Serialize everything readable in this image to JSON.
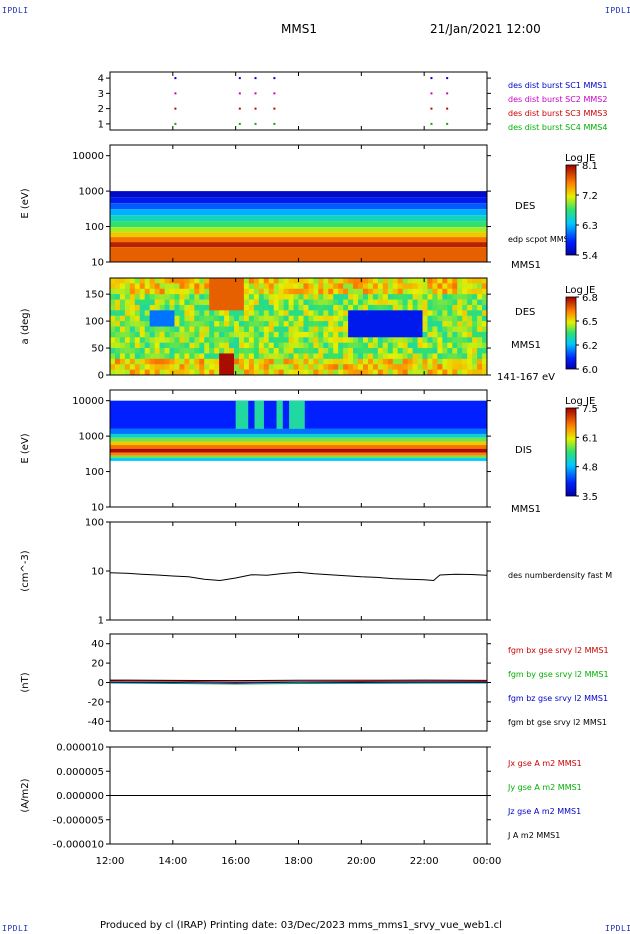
{
  "header": {
    "corner_tl": "IPDLI",
    "corner_tr": "IPDLI",
    "corner_bl": "IPDLI",
    "corner_br": "IPDLI",
    "spacecraft": "MMS1",
    "date_time": "21/Jan/2021 12:00"
  },
  "footer": {
    "text": "Produced by cl (IRAP)   Printing date: 03/Dec/2023   mms_mms1_srvy_vue_web1.cl"
  },
  "x_axis": {
    "ticks": [
      "12:00",
      "14:00",
      "16:00",
      "18:00",
      "20:00",
      "22:00",
      "00:00"
    ],
    "range_hours": [
      12,
      24
    ]
  },
  "chart_data": [
    {
      "type": "scatter",
      "id": "burst",
      "ylim": [
        0.6,
        4.4
      ],
      "yticks": [
        "1",
        "2",
        "3",
        "4"
      ],
      "legend": [
        {
          "label": "des dist burst SC1 MMS1",
          "color": "#0000cc"
        },
        {
          "label": "des dist burst SC2 MMS2",
          "color": "#cc00cc"
        },
        {
          "label": "des dist burst SC3 MMS3",
          "color": "#cc0000"
        },
        {
          "label": "des dist burst SC4 MMS4",
          "color": "#00b000"
        }
      ],
      "burst_times_hours": [
        14.05,
        16.1,
        16.6,
        17.2,
        22.2,
        22.7
      ]
    },
    {
      "type": "heatmap",
      "id": "des_energy",
      "ylabel": "E (eV)",
      "yscale": "log",
      "ylim": [
        10,
        20000
      ],
      "yticks": [
        "10",
        "100",
        "1000",
        "10000"
      ],
      "side_labels": [
        "DES",
        "edp scpot MMS1",
        "MMS1"
      ],
      "colorbar": {
        "title": "Log JE",
        "ticks": [
          "8.1",
          "7.2",
          "6.3",
          "5.4"
        ],
        "range": [
          5.4,
          8.1
        ]
      }
    },
    {
      "type": "heatmap",
      "id": "des_pitch",
      "ylabel": "a (deg)",
      "ylim": [
        0,
        180
      ],
      "yticks": [
        "0",
        "50",
        "100",
        "150"
      ],
      "side_labels": [
        "DES",
        "MMS1",
        "141-167 eV"
      ],
      "colorbar": {
        "title": "Log JE",
        "ticks": [
          "6.8",
          "6.5",
          "6.2",
          "6.0"
        ],
        "range": [
          6.0,
          6.8
        ]
      }
    },
    {
      "type": "heatmap",
      "id": "dis_energy",
      "ylabel": "E (eV)",
      "yscale": "log",
      "ylim": [
        10,
        20000
      ],
      "yticks": [
        "10",
        "100",
        "1000",
        "10000"
      ],
      "side_labels": [
        "DIS",
        "MMS1"
      ],
      "colorbar": {
        "title": "Log JE",
        "ticks": [
          "7.5",
          "6.1",
          "4.8",
          "3.5"
        ],
        "range": [
          3.5,
          7.5
        ]
      }
    },
    {
      "type": "line",
      "id": "density",
      "ylabel": "(cm^-3)",
      "yscale": "log",
      "ylim": [
        1,
        100
      ],
      "yticks": [
        "1",
        "10",
        "100"
      ],
      "series": [
        {
          "name": "des numberdensity fast M",
          "color": "#000000",
          "x": [
            12.0,
            12.5,
            13.0,
            13.5,
            14.0,
            14.5,
            15.0,
            15.5,
            16.0,
            16.5,
            17.0,
            17.5,
            18.0,
            18.5,
            19.0,
            19.5,
            20.0,
            20.5,
            21.0,
            21.5,
            22.0,
            22.3,
            22.5,
            23.0,
            23.5,
            24.0
          ],
          "y": [
            9.2,
            9.0,
            8.6,
            8.3,
            7.9,
            7.6,
            6.8,
            6.4,
            7.2,
            8.4,
            8.2,
            8.9,
            9.4,
            8.8,
            8.4,
            8.0,
            7.6,
            7.4,
            7.0,
            6.8,
            6.6,
            6.4,
            8.3,
            8.6,
            8.5,
            8.2
          ]
        }
      ]
    },
    {
      "type": "line",
      "id": "magnetic",
      "ylabel": "(nT)",
      "ylim": [
        -50,
        50
      ],
      "yticks": [
        "-40",
        "-20",
        "0",
        "20",
        "40"
      ],
      "series": [
        {
          "name": "fgm bx gse srvy l2 MMS1",
          "color": "#cc0000",
          "x": [
            12,
            14,
            16,
            18,
            20,
            22,
            24
          ],
          "y": [
            1.5,
            1.2,
            0.5,
            0.8,
            1.0,
            1.2,
            1.0
          ]
        },
        {
          "name": "fgm by gse srvy l2 MMS1",
          "color": "#00b000",
          "x": [
            12,
            14,
            16,
            18,
            20,
            22,
            24
          ],
          "y": [
            -0.5,
            -1.0,
            -1.5,
            -1.0,
            -0.8,
            -0.6,
            -0.5
          ]
        },
        {
          "name": "fgm bz gse srvy l2 MMS1",
          "color": "#0000cc",
          "x": [
            12,
            14,
            16,
            18,
            20,
            22,
            24
          ],
          "y": [
            0.2,
            0.0,
            -0.5,
            0.3,
            0.0,
            0.2,
            0.1
          ]
        },
        {
          "name": "fgm bt gse srvy l2 MMS1",
          "color": "#000000",
          "x": [
            12,
            14,
            16,
            18,
            20,
            22,
            24
          ],
          "y": [
            2.5,
            2.2,
            2.0,
            2.4,
            2.3,
            2.5,
            2.2
          ]
        }
      ]
    },
    {
      "type": "line",
      "id": "current",
      "ylabel": "(A/m2)",
      "ylim": [
        -1e-05,
        1e-05
      ],
      "yticks": [
        "-0.000010",
        "-0.000005",
        "0.000000",
        "0.000005",
        "0.000010"
      ],
      "series": [
        {
          "name": "Jx gse A m2 MMS1",
          "color": "#cc0000"
        },
        {
          "name": "Jy gse A m2 MMS1",
          "color": "#00b000"
        },
        {
          "name": "Jz gse A m2 MMS1",
          "color": "#0000cc"
        },
        {
          "name": "J A m2 MMS1",
          "color": "#000000",
          "x": [
            12,
            18,
            24
          ],
          "y": [
            0,
            0,
            0
          ]
        }
      ]
    }
  ]
}
